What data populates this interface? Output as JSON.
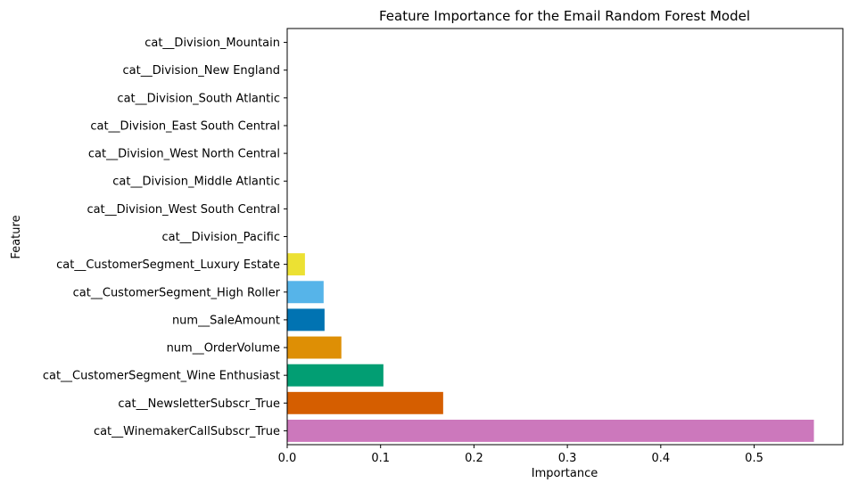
{
  "chart_data": {
    "type": "bar",
    "orientation": "horizontal",
    "title": "Feature Importance for the Email Random Forest Model",
    "xlabel": "Importance",
    "ylabel": "Feature",
    "xlim": [
      0,
      0.595
    ],
    "xticks": [
      0.0,
      0.1,
      0.2,
      0.3,
      0.4,
      0.5
    ],
    "xtick_labels": [
      "0.0",
      "0.1",
      "0.2",
      "0.3",
      "0.4",
      "0.5"
    ],
    "grid": false,
    "categories": [
      "cat__Division_Mountain",
      "cat__Division_New England",
      "cat__Division_South Atlantic",
      "cat__Division_East South Central",
      "cat__Division_West North Central",
      "cat__Division_Middle Atlantic",
      "cat__Division_West South Central",
      "cat__Division_Pacific",
      "cat__CustomerSegment_Luxury Estate",
      "cat__CustomerSegment_High Roller",
      "num__SaleAmount",
      "num__OrderVolume",
      "cat__CustomerSegment_Wine Enthusiast",
      "cat__NewsletterSubscr_True",
      "cat__WinemakerCallSubscr_True"
    ],
    "values": [
      0,
      0,
      0,
      0,
      0,
      0,
      0,
      0,
      0.019,
      0.039,
      0.04,
      0.058,
      0.103,
      0.167,
      0.564
    ],
    "colors": [
      "#949494",
      "#fbafe4",
      "#56b4e9",
      "#ca9161",
      "#ece133",
      "#949494",
      "#fbafe4",
      "#56b4e9",
      "#ece133",
      "#56b4e9",
      "#0173b2",
      "#de8f05",
      "#029e73",
      "#d55e00",
      "#cc78bc"
    ]
  }
}
